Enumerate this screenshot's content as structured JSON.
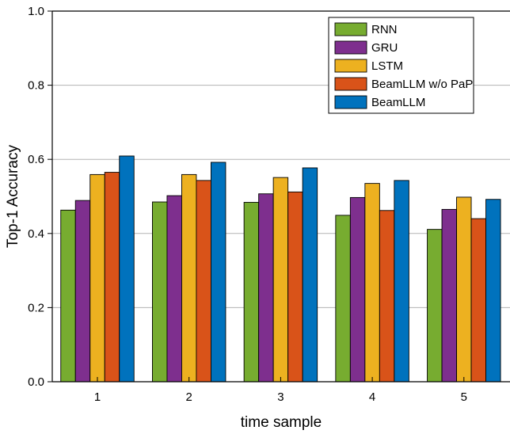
{
  "chart_data": {
    "type": "bar",
    "categories": [
      "1",
      "2",
      "3",
      "4",
      "5"
    ],
    "series": [
      {
        "name": "RNN",
        "values": [
          0.463,
          0.485,
          0.484,
          0.449,
          0.411
        ],
        "color": "#77ac30"
      },
      {
        "name": "GRU",
        "values": [
          0.489,
          0.502,
          0.507,
          0.497,
          0.465
        ],
        "color": "#7e2f8e"
      },
      {
        "name": "LSTM",
        "values": [
          0.559,
          0.559,
          0.551,
          0.535,
          0.498
        ],
        "color": "#edb120"
      },
      {
        "name": "BeamLLM w/o PaP",
        "values": [
          0.565,
          0.543,
          0.512,
          0.462,
          0.44
        ],
        "color": "#d95319"
      },
      {
        "name": "BeamLLM",
        "values": [
          0.609,
          0.592,
          0.577,
          0.543,
          0.492
        ],
        "color": "#0072bd"
      }
    ],
    "xlabel": "time sample",
    "ylabel": "Top-1 Accuracy",
    "ylim": [
      0,
      1.0
    ],
    "yticks": [
      "0.0",
      "0.2",
      "0.4",
      "0.6",
      "0.8",
      "1.0"
    ],
    "grid": "horizontal",
    "legend": "top-right"
  }
}
